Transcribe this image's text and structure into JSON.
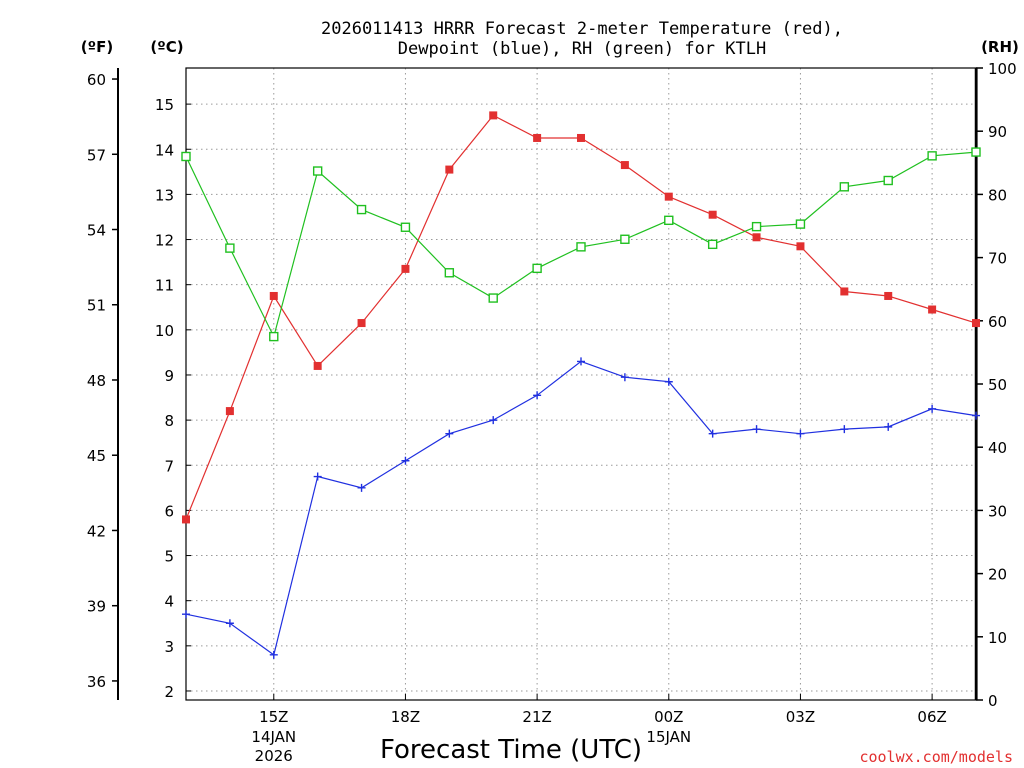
{
  "chart_data": {
    "type": "line",
    "title_line1": "2026011413 HRRR Forecast 2-meter Temperature (red),",
    "title_line2": "Dewpoint (blue), RH (green) for KTLH",
    "unit_f": "(ºF)",
    "unit_c": "(ºC)",
    "unit_rh": "(RH)",
    "xlabel": "Forecast Time (UTC)",
    "credit": "coolwx.com/models",
    "x_hours": [
      13,
      14,
      15,
      16,
      17,
      18,
      19,
      20,
      21,
      22,
      23,
      0,
      1,
      2,
      3,
      4,
      5,
      6,
      7
    ],
    "x_ticks": [
      {
        "index": 2,
        "label": "15Z",
        "date": "14JAN",
        "year": "2026"
      },
      {
        "index": 5,
        "label": "18Z"
      },
      {
        "index": 8,
        "label": "21Z"
      },
      {
        "index": 11,
        "label": "00Z",
        "date": "15JAN"
      },
      {
        "index": 14,
        "label": "03Z"
      },
      {
        "index": 17,
        "label": "06Z"
      }
    ],
    "celsius_axis": {
      "min": 1.8,
      "max": 15.8,
      "ticks": [
        2,
        3,
        4,
        5,
        6,
        7,
        8,
        9,
        10,
        11,
        12,
        13,
        14,
        15
      ]
    },
    "fahrenheit_ticks": [
      36,
      39,
      42,
      45,
      48,
      51,
      54,
      57,
      60
    ],
    "rh_axis": {
      "min": 0,
      "max": 100,
      "ticks": [
        0,
        10,
        20,
        30,
        40,
        50,
        60,
        70,
        80,
        90,
        100
      ]
    },
    "series": [
      {
        "name": "Temperature",
        "color": "#e23030",
        "marker": "filled-square",
        "unit": "C",
        "values": [
          5.8,
          8.2,
          10.75,
          9.2,
          10.15,
          11.35,
          13.55,
          14.75,
          14.25,
          14.25,
          13.65,
          12.95,
          12.55,
          12.05,
          11.85,
          10.85,
          10.75,
          10.45,
          10.15
        ]
      },
      {
        "name": "Dewpoint",
        "color": "#2030e0",
        "marker": "plus",
        "unit": "C",
        "values": [
          3.7,
          3.5,
          2.8,
          6.75,
          6.5,
          7.1,
          7.7,
          8.0,
          8.55,
          9.3,
          8.95,
          8.85,
          7.7,
          7.8,
          7.7,
          7.8,
          7.85,
          8.25,
          8.1
        ]
      },
      {
        "name": "RH",
        "color": "#20c020",
        "marker": "open-square",
        "unit": "%",
        "values": [
          86.0,
          71.5,
          57.5,
          83.7,
          77.6,
          74.8,
          67.6,
          63.6,
          68.3,
          71.7,
          72.9,
          75.9,
          72.1,
          74.9,
          75.3,
          81.2,
          82.2,
          86.1,
          86.7
        ]
      }
    ]
  }
}
